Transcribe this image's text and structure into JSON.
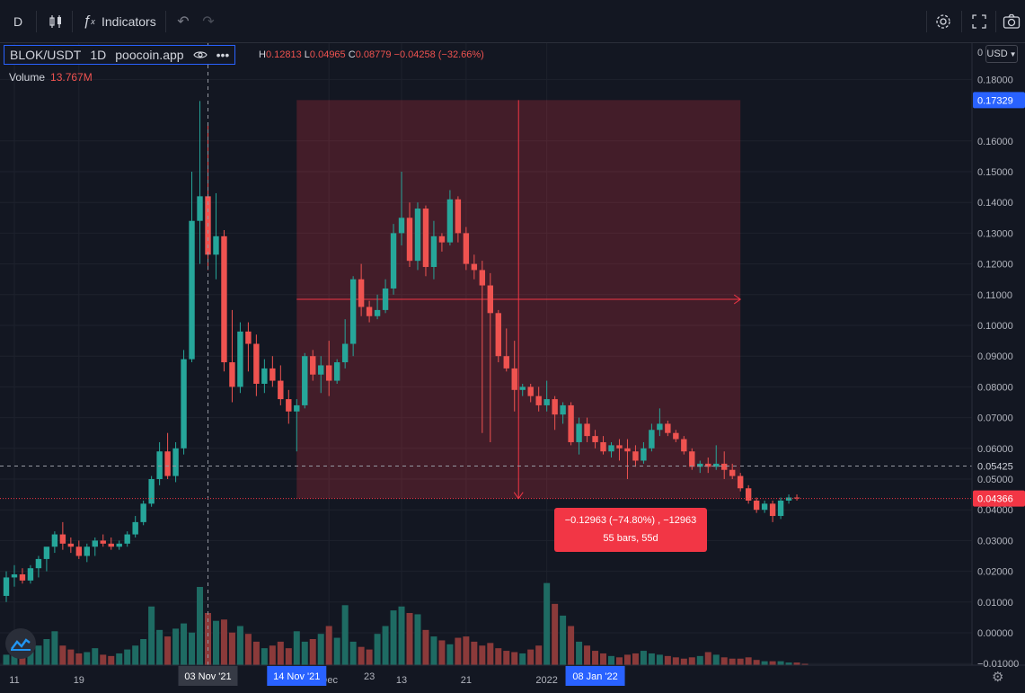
{
  "toolbar": {
    "interval": "D",
    "indicators_label": "Indicators"
  },
  "legend": {
    "symbol": "BLOK/USDT",
    "interval": "1D",
    "exchange": "poocoin.app",
    "high_key": "H",
    "high": "0.12813",
    "low_key": "L",
    "low": "0.04965",
    "close_key": "C",
    "close": "0.08779",
    "change": "−0.04258 (−32.66%)",
    "volume_label": "Volume",
    "volume_value": "13.767M"
  },
  "currency": "USD",
  "measure": {
    "line1": "−0.12963 (−74.80%) , −12963",
    "line2": "55 bars, 55d"
  },
  "chart_data": {
    "type": "candlestick",
    "price_axis_ticks": [
      "0.18000",
      "0.16000",
      "0.15000",
      "0.14000",
      "0.13000",
      "0.12000",
      "0.11000",
      "0.10000",
      "0.09000",
      "0.08000",
      "0.07000",
      "0.06000",
      "0.05000",
      "0.04000",
      "0.03000",
      "0.02000",
      "0.01000",
      "0.00000",
      "−0.01000"
    ],
    "price_axis_top_label": "0",
    "price_ticks": [
      0.18,
      0.16,
      0.15,
      0.14,
      0.13,
      0.12,
      0.11,
      0.1,
      0.09,
      0.08,
      0.07,
      0.06,
      0.05,
      0.04,
      0.03,
      0.02,
      0.01,
      0.0,
      -0.01
    ],
    "price_labels": [
      {
        "value": 0.17329,
        "text": "0.17329",
        "color": "#2962ff"
      },
      {
        "value": 0.05425,
        "text": "0.05425",
        "color": "#131722"
      },
      {
        "value": 0.04366,
        "text": "0.04366",
        "color": "#f23645"
      }
    ],
    "time_labels": [
      "11",
      "19",
      "Dec",
      "13",
      "21",
      "2022"
    ],
    "time_label_bars": [
      1,
      9,
      40,
      49,
      57,
      67
    ],
    "time_highlights": [
      {
        "text": "03 Nov '21",
        "bar": 25,
        "color": "#363a45"
      },
      {
        "text": "14 Nov '21",
        "bar": 36,
        "color": "#2962ff"
      },
      {
        "text": "23",
        "bar": 45,
        "color": null
      },
      {
        "text": "08 Jan '22",
        "bar": 73,
        "color": "#2962ff"
      }
    ],
    "measure_range": {
      "start_bar": 36,
      "end_bar": 91,
      "from_price": 0.17329,
      "to_price": 0.04366
    },
    "crosshair": {
      "bar": 25,
      "price": 0.05425
    },
    "colors": {
      "up": "#26a69a",
      "down": "#ef5350",
      "up_vol": "#1e6b63",
      "down_vol": "#8b3a3a",
      "range_fill": "#f23645"
    },
    "candles": [
      {
        "o": 0.012,
        "h": 0.02,
        "l": 0.01,
        "c": 0.018
      },
      {
        "o": 0.018,
        "h": 0.022,
        "l": 0.015,
        "c": 0.019
      },
      {
        "o": 0.019,
        "h": 0.021,
        "l": 0.016,
        "c": 0.017
      },
      {
        "o": 0.017,
        "h": 0.022,
        "l": 0.016,
        "c": 0.021
      },
      {
        "o": 0.021,
        "h": 0.025,
        "l": 0.018,
        "c": 0.024
      },
      {
        "o": 0.024,
        "h": 0.027,
        "l": 0.02,
        "c": 0.028
      },
      {
        "o": 0.028,
        "h": 0.033,
        "l": 0.026,
        "c": 0.032
      },
      {
        "o": 0.032,
        "h": 0.036,
        "l": 0.027,
        "c": 0.029
      },
      {
        "o": 0.029,
        "h": 0.031,
        "l": 0.026,
        "c": 0.028
      },
      {
        "o": 0.028,
        "h": 0.03,
        "l": 0.024,
        "c": 0.025
      },
      {
        "o": 0.025,
        "h": 0.029,
        "l": 0.023,
        "c": 0.028
      },
      {
        "o": 0.028,
        "h": 0.031,
        "l": 0.025,
        "c": 0.03
      },
      {
        "o": 0.03,
        "h": 0.032,
        "l": 0.028,
        "c": 0.029
      },
      {
        "o": 0.029,
        "h": 0.031,
        "l": 0.027,
        "c": 0.028
      },
      {
        "o": 0.028,
        "h": 0.03,
        "l": 0.027,
        "c": 0.029
      },
      {
        "o": 0.029,
        "h": 0.033,
        "l": 0.028,
        "c": 0.032
      },
      {
        "o": 0.032,
        "h": 0.038,
        "l": 0.031,
        "c": 0.036
      },
      {
        "o": 0.036,
        "h": 0.043,
        "l": 0.035,
        "c": 0.042
      },
      {
        "o": 0.042,
        "h": 0.051,
        "l": 0.041,
        "c": 0.05
      },
      {
        "o": 0.05,
        "h": 0.062,
        "l": 0.048,
        "c": 0.059
      },
      {
        "o": 0.059,
        "h": 0.065,
        "l": 0.05,
        "c": 0.051
      },
      {
        "o": 0.051,
        "h": 0.062,
        "l": 0.049,
        "c": 0.06
      },
      {
        "o": 0.06,
        "h": 0.092,
        "l": 0.058,
        "c": 0.089
      },
      {
        "o": 0.089,
        "h": 0.15,
        "l": 0.088,
        "c": 0.134
      },
      {
        "o": 0.134,
        "h": 0.173,
        "l": 0.12,
        "c": 0.142
      },
      {
        "o": 0.142,
        "h": 0.165,
        "l": 0.118,
        "c": 0.123
      },
      {
        "o": 0.123,
        "h": 0.143,
        "l": 0.115,
        "c": 0.129
      },
      {
        "o": 0.129,
        "h": 0.131,
        "l": 0.085,
        "c": 0.088
      },
      {
        "o": 0.088,
        "h": 0.105,
        "l": 0.075,
        "c": 0.08
      },
      {
        "o": 0.08,
        "h": 0.101,
        "l": 0.078,
        "c": 0.098
      },
      {
        "o": 0.098,
        "h": 0.101,
        "l": 0.085,
        "c": 0.094
      },
      {
        "o": 0.094,
        "h": 0.097,
        "l": 0.077,
        "c": 0.081
      },
      {
        "o": 0.081,
        "h": 0.089,
        "l": 0.078,
        "c": 0.086
      },
      {
        "o": 0.086,
        "h": 0.09,
        "l": 0.08,
        "c": 0.082
      },
      {
        "o": 0.082,
        "h": 0.087,
        "l": 0.074,
        "c": 0.076
      },
      {
        "o": 0.076,
        "h": 0.079,
        "l": 0.068,
        "c": 0.072
      },
      {
        "o": 0.072,
        "h": 0.076,
        "l": 0.059,
        "c": 0.074
      },
      {
        "o": 0.074,
        "h": 0.091,
        "l": 0.073,
        "c": 0.09
      },
      {
        "o": 0.09,
        "h": 0.092,
        "l": 0.082,
        "c": 0.084
      },
      {
        "o": 0.084,
        "h": 0.09,
        "l": 0.078,
        "c": 0.087
      },
      {
        "o": 0.087,
        "h": 0.095,
        "l": 0.077,
        "c": 0.082
      },
      {
        "o": 0.082,
        "h": 0.089,
        "l": 0.081,
        "c": 0.088
      },
      {
        "o": 0.088,
        "h": 0.102,
        "l": 0.086,
        "c": 0.094
      },
      {
        "o": 0.094,
        "h": 0.116,
        "l": 0.09,
        "c": 0.115
      },
      {
        "o": 0.115,
        "h": 0.12,
        "l": 0.103,
        "c": 0.106
      },
      {
        "o": 0.106,
        "h": 0.108,
        "l": 0.101,
        "c": 0.103
      },
      {
        "o": 0.103,
        "h": 0.11,
        "l": 0.102,
        "c": 0.105
      },
      {
        "o": 0.105,
        "h": 0.115,
        "l": 0.104,
        "c": 0.112
      },
      {
        "o": 0.112,
        "h": 0.133,
        "l": 0.11,
        "c": 0.13
      },
      {
        "o": 0.13,
        "h": 0.15,
        "l": 0.126,
        "c": 0.135
      },
      {
        "o": 0.135,
        "h": 0.14,
        "l": 0.119,
        "c": 0.121
      },
      {
        "o": 0.121,
        "h": 0.14,
        "l": 0.118,
        "c": 0.138
      },
      {
        "o": 0.138,
        "h": 0.139,
        "l": 0.116,
        "c": 0.119
      },
      {
        "o": 0.119,
        "h": 0.134,
        "l": 0.115,
        "c": 0.129
      },
      {
        "o": 0.129,
        "h": 0.13,
        "l": 0.124,
        "c": 0.127
      },
      {
        "o": 0.127,
        "h": 0.144,
        "l": 0.126,
        "c": 0.141
      },
      {
        "o": 0.141,
        "h": 0.142,
        "l": 0.127,
        "c": 0.13
      },
      {
        "o": 0.13,
        "h": 0.132,
        "l": 0.118,
        "c": 0.12
      },
      {
        "o": 0.12,
        "h": 0.123,
        "l": 0.115,
        "c": 0.118
      },
      {
        "o": 0.118,
        "h": 0.121,
        "l": 0.065,
        "c": 0.113
      },
      {
        "o": 0.113,
        "h": 0.117,
        "l": 0.062,
        "c": 0.104
      },
      {
        "o": 0.104,
        "h": 0.105,
        "l": 0.088,
        "c": 0.09
      },
      {
        "o": 0.09,
        "h": 0.099,
        "l": 0.085,
        "c": 0.086
      },
      {
        "o": 0.086,
        "h": 0.095,
        "l": 0.072,
        "c": 0.079
      },
      {
        "o": 0.079,
        "h": 0.081,
        "l": 0.077,
        "c": 0.08
      },
      {
        "o": 0.08,
        "h": 0.081,
        "l": 0.075,
        "c": 0.077
      },
      {
        "o": 0.077,
        "h": 0.08,
        "l": 0.072,
        "c": 0.074
      },
      {
        "o": 0.074,
        "h": 0.082,
        "l": 0.072,
        "c": 0.076
      },
      {
        "o": 0.076,
        "h": 0.077,
        "l": 0.066,
        "c": 0.071
      },
      {
        "o": 0.071,
        "h": 0.075,
        "l": 0.068,
        "c": 0.074
      },
      {
        "o": 0.074,
        "h": 0.075,
        "l": 0.061,
        "c": 0.062
      },
      {
        "o": 0.062,
        "h": 0.07,
        "l": 0.058,
        "c": 0.068
      },
      {
        "o": 0.068,
        "h": 0.07,
        "l": 0.062,
        "c": 0.064
      },
      {
        "o": 0.064,
        "h": 0.066,
        "l": 0.06,
        "c": 0.062
      },
      {
        "o": 0.062,
        "h": 0.064,
        "l": 0.058,
        "c": 0.059
      },
      {
        "o": 0.059,
        "h": 0.062,
        "l": 0.057,
        "c": 0.061
      },
      {
        "o": 0.061,
        "h": 0.063,
        "l": 0.056,
        "c": 0.06
      },
      {
        "o": 0.06,
        "h": 0.063,
        "l": 0.05,
        "c": 0.059
      },
      {
        "o": 0.059,
        "h": 0.061,
        "l": 0.054,
        "c": 0.056
      },
      {
        "o": 0.056,
        "h": 0.062,
        "l": 0.055,
        "c": 0.06
      },
      {
        "o": 0.06,
        "h": 0.068,
        "l": 0.059,
        "c": 0.066
      },
      {
        "o": 0.066,
        "h": 0.073,
        "l": 0.064,
        "c": 0.068
      },
      {
        "o": 0.068,
        "h": 0.069,
        "l": 0.064,
        "c": 0.065
      },
      {
        "o": 0.065,
        "h": 0.066,
        "l": 0.062,
        "c": 0.063
      },
      {
        "o": 0.063,
        "h": 0.064,
        "l": 0.058,
        "c": 0.059
      },
      {
        "o": 0.059,
        "h": 0.06,
        "l": 0.053,
        "c": 0.054
      },
      {
        "o": 0.054,
        "h": 0.056,
        "l": 0.052,
        "c": 0.055
      },
      {
        "o": 0.055,
        "h": 0.057,
        "l": 0.052,
        "c": 0.054
      },
      {
        "o": 0.054,
        "h": 0.061,
        "l": 0.053,
        "c": 0.055
      },
      {
        "o": 0.055,
        "h": 0.059,
        "l": 0.05,
        "c": 0.053
      },
      {
        "o": 0.053,
        "h": 0.055,
        "l": 0.05,
        "c": 0.051
      },
      {
        "o": 0.051,
        "h": 0.052,
        "l": 0.046,
        "c": 0.047
      },
      {
        "o": 0.047,
        "h": 0.048,
        "l": 0.042,
        "c": 0.043
      },
      {
        "o": 0.043,
        "h": 0.044,
        "l": 0.039,
        "c": 0.04
      },
      {
        "o": 0.04,
        "h": 0.043,
        "l": 0.039,
        "c": 0.042
      },
      {
        "o": 0.042,
        "h": 0.043,
        "l": 0.036,
        "c": 0.038
      },
      {
        "o": 0.038,
        "h": 0.044,
        "l": 0.037,
        "c": 0.043
      },
      {
        "o": 0.043,
        "h": 0.045,
        "l": 0.042,
        "c": 0.044
      },
      {
        "o": 0.044,
        "h": 0.045,
        "l": 0.043,
        "c": 0.0437
      }
    ],
    "volumes": [
      0.8,
      1.1,
      0.9,
      1.2,
      1.5,
      2.0,
      2.6,
      1.5,
      1.2,
      0.9,
      1.0,
      1.3,
      0.8,
      0.7,
      0.9,
      1.2,
      1.5,
      2.0,
      4.5,
      2.7,
      2.2,
      2.8,
      3.2,
      2.5,
      6.0,
      4.0,
      3.4,
      3.5,
      2.5,
      3.0,
      2.4,
      1.8,
      1.3,
      1.5,
      1.8,
      1.3,
      2.6,
      1.8,
      2.0,
      2.4,
      3.0,
      2.1,
      4.6,
      1.8,
      1.4,
      1.2,
      2.4,
      3.0,
      4.2,
      4.5,
      4.0,
      3.9,
      2.7,
      2.2,
      1.9,
      1.6,
      2.1,
      2.2,
      1.8,
      1.5,
      1.7,
      1.3,
      1.1,
      1.0,
      0.9,
      1.2,
      1.5,
      6.3,
      4.7,
      3.8,
      3.0,
      1.8,
      1.5,
      1.1,
      0.9,
      0.7,
      0.6,
      0.8,
      0.9,
      1.1,
      0.9,
      0.8,
      0.7,
      0.6,
      0.5,
      0.6,
      0.7,
      1.0,
      0.8,
      0.6,
      0.5,
      0.5,
      0.6,
      0.4,
      0.3,
      0.3,
      0.3,
      0.2,
      0.2,
      0.1
    ]
  }
}
